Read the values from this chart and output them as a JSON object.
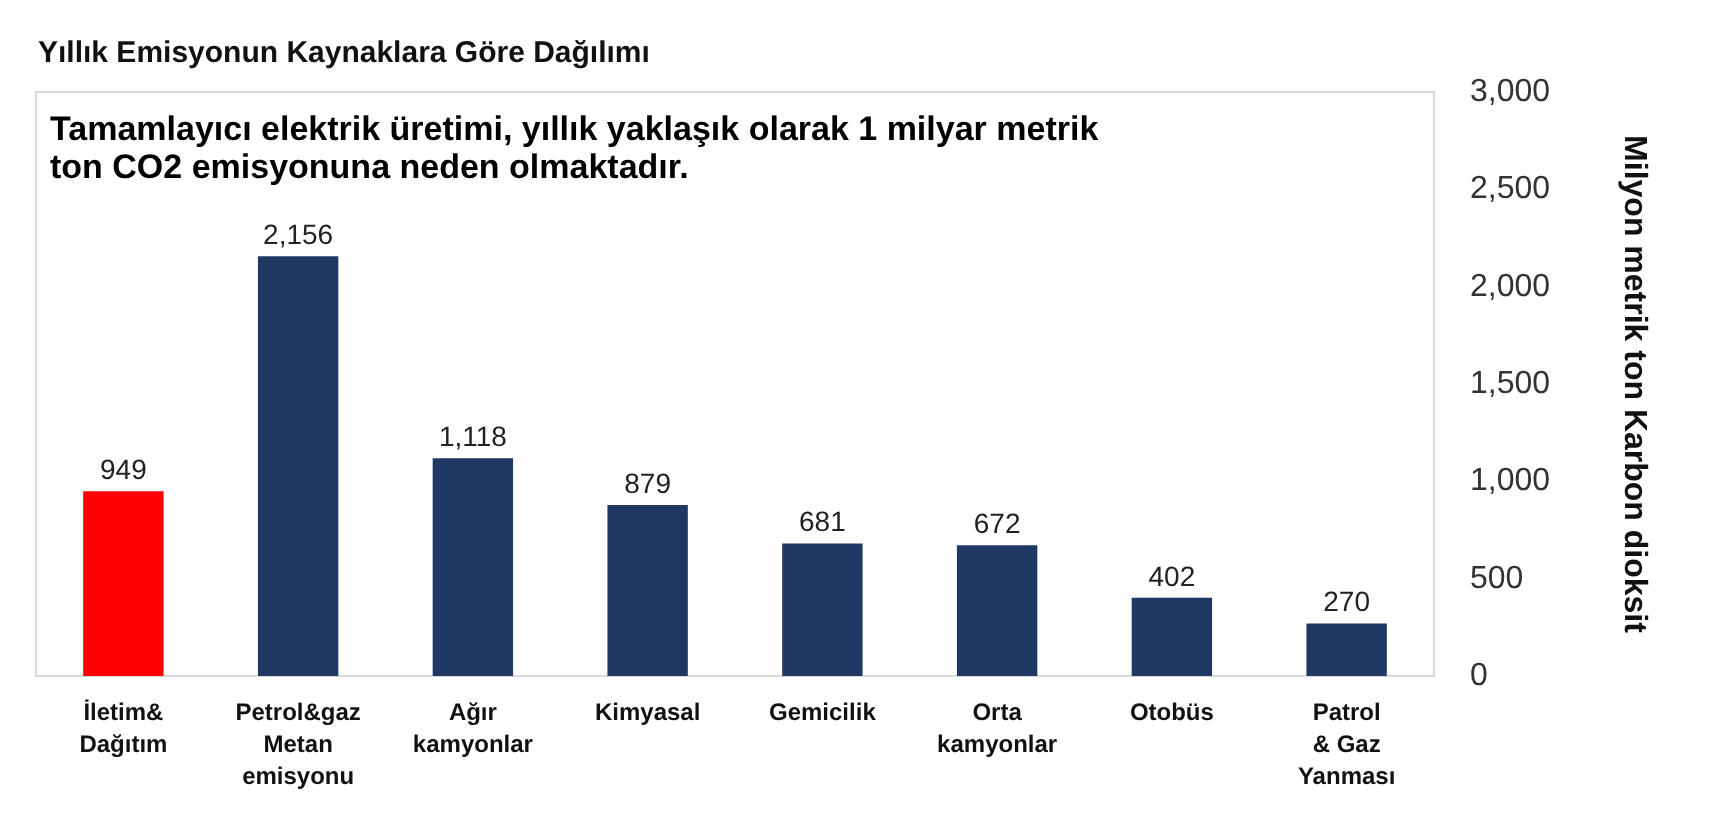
{
  "chart_data": {
    "type": "bar",
    "title": "Yıllık Emisyonun Kaynaklara Göre Dağılımı",
    "subtitle": "Tamamlayıcı elektrik üretimi, yıllık yaklaşık olarak 1 milyar metrik\nton CO2 emisyonuna neden olmaktadır.",
    "ylabel": "Milyon metrik ton Karbon dioksit",
    "categories": [
      "İletim&\nDağıtım",
      "Petrol&gaz\nMetan\nemisyonu",
      "Ağır\nkamyonlar",
      "Kimyasal",
      "Gemicilik",
      "Orta\nkamyonlar",
      "Otobüs",
      "Patrol\n& Gaz\nYanması"
    ],
    "values": [
      949,
      2156,
      1118,
      879,
      681,
      672,
      402,
      270
    ],
    "colors": [
      "#ff0000",
      "#1f3864",
      "#1f3864",
      "#1f3864",
      "#1f3864",
      "#1f3864",
      "#1f3864",
      "#1f3864"
    ],
    "value_labels": [
      "949",
      "2,156",
      "1,118",
      "879",
      "681",
      "672",
      "402",
      "270"
    ],
    "ylim": [
      0,
      3000
    ],
    "yticks": [
      0,
      500,
      {
        "value": 1000,
        "label": "1,000"
      },
      {
        "value": 1500,
        "label": "1,500"
      },
      {
        "value": 2000,
        "label": "2,000"
      },
      {
        "value": 2500,
        "label": "2,500"
      },
      {
        "value": 3000,
        "label": "3,000"
      }
    ],
    "grid": false
  }
}
